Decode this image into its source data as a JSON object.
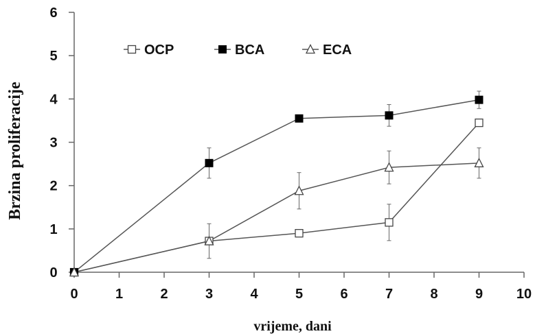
{
  "chart_data": {
    "type": "line",
    "xlabel": "vrijeme, dani",
    "ylabel": "Brzina proliferacije",
    "xlim": [
      0,
      10
    ],
    "ylim": [
      0,
      6
    ],
    "xticks": [
      "0",
      "1",
      "2",
      "3",
      "4",
      "5",
      "6",
      "7",
      "8",
      "9",
      "10"
    ],
    "yticks": [
      "0",
      "1",
      "2",
      "3",
      "4",
      "5",
      "6"
    ],
    "grid": false,
    "legend_position": "top",
    "series": [
      {
        "name": "OCP",
        "marker": "open-square",
        "x": [
          0,
          3,
          5,
          7,
          9
        ],
        "y": [
          0,
          0.72,
          0.9,
          1.15,
          3.45
        ],
        "error": [
          0,
          0.4,
          0,
          0.42,
          0
        ]
      },
      {
        "name": "BCA",
        "marker": "filled-square",
        "x": [
          0,
          3,
          5,
          7,
          9
        ],
        "y": [
          0,
          2.52,
          3.55,
          3.62,
          3.98
        ],
        "error": [
          0,
          0.35,
          0,
          0.25,
          0.2
        ]
      },
      {
        "name": "ECA",
        "marker": "open-triangle",
        "x": [
          0,
          3,
          5,
          7,
          9
        ],
        "y": [
          0,
          0.72,
          1.88,
          2.42,
          2.52
        ],
        "error": [
          0,
          0,
          0.42,
          0.38,
          0.35
        ]
      }
    ],
    "colors": {
      "line": "#555555",
      "axis": "#666666",
      "marker_fill": "#000000",
      "marker_open": "#ffffff"
    }
  }
}
